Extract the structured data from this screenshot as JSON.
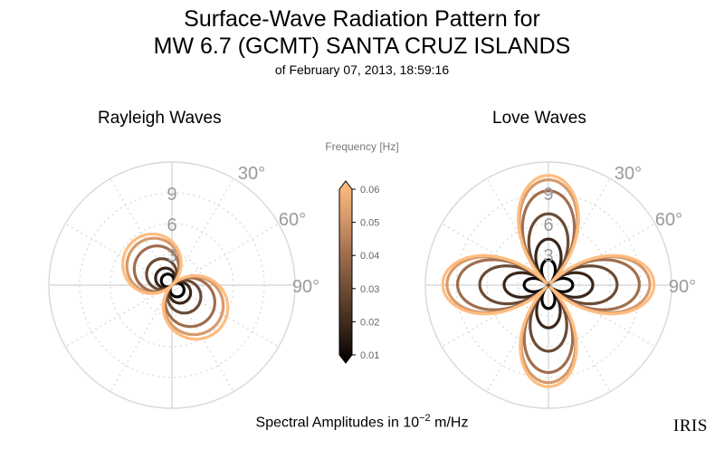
{
  "title_line1": "Surface-Wave Radiation Pattern for",
  "title_line2": "MW 6.7 (GCMT) SANTA CRUZ ISLANDS",
  "subtitle": "of February 07, 2013, 18:59:16",
  "footer_text": "Spectral Amplitudes in",
  "footer_base": "10",
  "footer_exp": "−2",
  "footer_unit": "m/Hz",
  "logo": "IRIS",
  "colors": {
    "grid": "#d9d9d9",
    "tick": "#9a9a9a"
  },
  "chart_data": {
    "type": "polar",
    "radial_ticks": [
      "3",
      "6",
      "9"
    ],
    "radial_max": 12,
    "angle_ticks": [
      "30°",
      "60°",
      "90°"
    ],
    "colorbar": {
      "label": "Frequency [Hz]",
      "ticks": [
        "0.01",
        "0.02",
        "0.03",
        "0.04",
        "0.05",
        "0.06"
      ],
      "min": 0.01,
      "max": 0.06,
      "colors": [
        "#000000",
        "#3a261a",
        "#6b4b34",
        "#a06e4e",
        "#d69a6b",
        "#ffbd80"
      ]
    },
    "panels": [
      {
        "title": "Rayleigh Waves",
        "pattern": "rayleigh",
        "curves": [
          {
            "frequency": 0.01,
            "amplitude": 1.3
          },
          {
            "frequency": 0.02,
            "amplitude": 2.0
          },
          {
            "frequency": 0.03,
            "amplitude": 3.1
          },
          {
            "frequency": 0.04,
            "amplitude": 4.6
          },
          {
            "frequency": 0.05,
            "amplitude": 5.5
          },
          {
            "frequency": 0.06,
            "amplitude": 6.0
          }
        ]
      },
      {
        "title": "Love Waves",
        "pattern": "love",
        "curves": [
          {
            "frequency": 0.01,
            "amplitude": 2.3
          },
          {
            "frequency": 0.02,
            "amplitude": 4.2
          },
          {
            "frequency": 0.03,
            "amplitude": 6.5
          },
          {
            "frequency": 0.04,
            "amplitude": 8.6
          },
          {
            "frequency": 0.05,
            "amplitude": 9.6
          },
          {
            "frequency": 0.06,
            "amplitude": 10.0
          }
        ]
      }
    ]
  }
}
